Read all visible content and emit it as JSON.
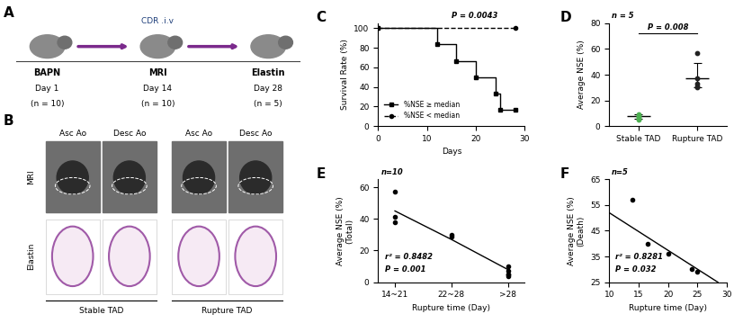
{
  "panels": {
    "A": {
      "label": "A",
      "top_note": "CDR .i.v",
      "steps": [
        {
          "name": "BAPN",
          "day": "Day 1",
          "n": "(n = 10)"
        },
        {
          "name": "MRI",
          "day": "Day 14",
          "n": "(n = 10)"
        },
        {
          "name": "Elastin",
          "day": "Day 28",
          "n": "(n = 5)"
        }
      ]
    },
    "B": {
      "label": "B",
      "columns": [
        "Asc Ao",
        "Desc Ao",
        "Asc Ao",
        "Desc Ao"
      ],
      "rows": [
        "MRI",
        "Elastin"
      ],
      "groups": [
        "Stable TAD",
        "Rupture TAD"
      ]
    }
  },
  "chart_data": [
    {
      "panel": "C",
      "type": "step",
      "x_label": "Days",
      "y_label": "Survival Rate (%)",
      "series": [
        {
          "name": "%NSE ≥ median",
          "color": "#000000",
          "marker": "s",
          "line_style": "solid",
          "x": [
            0,
            12,
            16,
            20,
            24,
            25,
            28
          ],
          "values": [
            100,
            83.3,
            66.7,
            50,
            33.3,
            16.7,
            16.7
          ]
        },
        {
          "name": "%NSE < median",
          "color": "#000000",
          "marker": "o",
          "line_style": "dashed",
          "x": [
            0,
            28
          ],
          "values": [
            100,
            100
          ]
        }
      ],
      "xlim": [
        0,
        30
      ],
      "xticks": [
        0,
        10,
        20,
        30
      ],
      "ylim": [
        0,
        105
      ],
      "yticks": [
        0,
        20,
        40,
        60,
        80,
        100
      ],
      "legend": "lower left",
      "annotations": [
        "P = 0.0043"
      ]
    },
    {
      "panel": "D",
      "type": "strip",
      "y_label": "Average NSE (%)",
      "categories": [
        "Stable TAD",
        "Rupture TAD"
      ],
      "values": [
        [
          5,
          6,
          7,
          8,
          9
        ],
        [
          30,
          31,
          33,
          37,
          57
        ]
      ],
      "colors": [
        "#4caf50",
        "#222222"
      ],
      "summary": {
        "center": [
          7.5,
          37
        ],
        "lower": [
          5.5,
          30
        ],
        "upper": [
          9.5,
          49
        ]
      },
      "ylim": [
        0,
        80
      ],
      "yticks": [
        0,
        20,
        40,
        60,
        80
      ],
      "annotations": [
        "n = 5",
        "P = 0.008"
      ]
    },
    {
      "panel": "E",
      "type": "scatter",
      "x_label": "Rupture time (Day)",
      "y_label": "Average NSE (%)\n(Total)",
      "categories": [
        "14~21",
        "22~28",
        ">28"
      ],
      "values": [
        [
          57,
          41,
          38
        ],
        [
          30,
          29
        ],
        [
          10,
          7,
          5,
          5,
          4
        ]
      ],
      "fit_values": [
        45,
        27,
        8
      ],
      "color": "#000000",
      "ylim": [
        0,
        65
      ],
      "yticks": [
        0,
        20,
        40,
        60
      ],
      "annotations": [
        "n=10",
        "r² = 0.8482",
        "P = 0.001"
      ]
    },
    {
      "panel": "F",
      "type": "scatter",
      "x_label": "Rupture time (Day)",
      "y_label": "Average NSE (%)\n(Death)",
      "x": [
        14,
        16.5,
        20,
        24,
        25
      ],
      "values": [
        57,
        40,
        36,
        30,
        29
      ],
      "fit": {
        "x": [
          10,
          28.5
        ],
        "y": [
          52,
          25
        ]
      },
      "color": "#000000",
      "xlim": [
        10,
        30
      ],
      "xticks": [
        10,
        15,
        20,
        25,
        30
      ],
      "ylim": [
        25,
        65
      ],
      "yticks": [
        25,
        35,
        45,
        55,
        65
      ],
      "annotations": [
        "n=5",
        "r² = 0.8281",
        "P = 0.032"
      ]
    }
  ]
}
